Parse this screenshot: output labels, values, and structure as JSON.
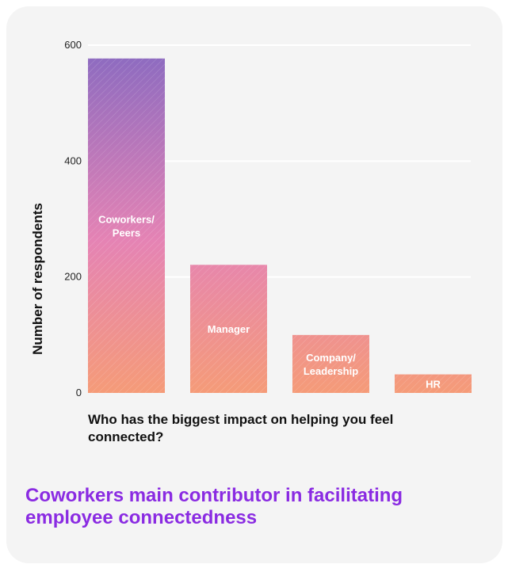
{
  "colors": {
    "card_bg": "#f4f4f4",
    "headline": "#8a2be2",
    "bar_gradient_top": "#8d6bc0",
    "bar_gradient_mid": "#e583b4",
    "bar_gradient_bottom": "#f59b78",
    "gridline": "#ffffff"
  },
  "headline": "Coworkers main contributor in facilitating employee connectedness",
  "chart_data": {
    "type": "bar",
    "categories": [
      "Coworkers/\nPeers",
      "Manager",
      "Company/\nLeadership",
      "HR"
    ],
    "values": [
      577,
      221,
      100,
      32
    ],
    "xlabel": "Who has the biggest impact on helping you feel connected?",
    "ylabel": "Number of respondents",
    "ylim": [
      0,
      600
    ],
    "yticks": [
      0,
      200,
      400,
      600
    ],
    "grid": true,
    "legend": "none",
    "labels_inside_bars": true
  }
}
